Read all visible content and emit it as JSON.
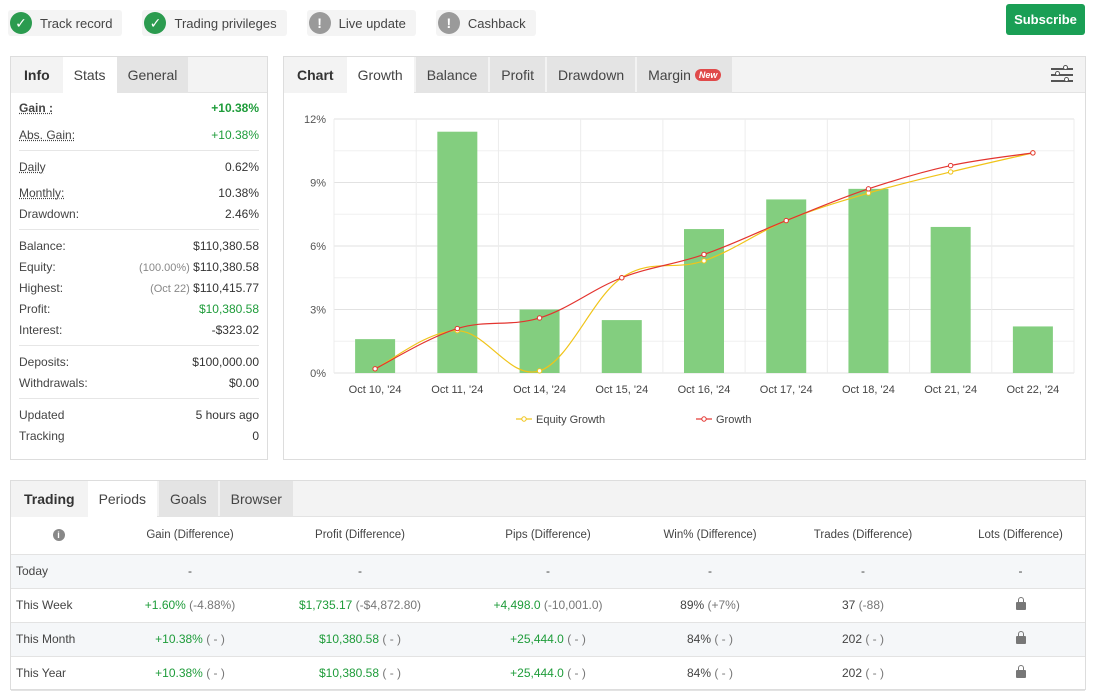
{
  "badges": [
    {
      "label": "Track record",
      "status": "ok"
    },
    {
      "label": "Trading privileges",
      "status": "ok"
    },
    {
      "label": "Live update",
      "status": "warn"
    },
    {
      "label": "Cashback",
      "status": "warn"
    }
  ],
  "subscribe_label": "Subscribe",
  "info_panel": {
    "tabs": [
      "Info",
      "Stats",
      "General"
    ],
    "gain": {
      "label": "Gain :",
      "value": "+10.38%"
    },
    "abs_gain": {
      "label": "Abs. Gain:",
      "value": "+10.38%"
    },
    "daily": {
      "label": "Daily",
      "value": "0.62%"
    },
    "monthly": {
      "label": "Monthly:",
      "value": "10.38%"
    },
    "drawdown": {
      "label": "Drawdown:",
      "value": "2.46%"
    },
    "balance": {
      "label": "Balance:",
      "value": "$110,380.58"
    },
    "equity": {
      "label": "Equity:",
      "prefix": "(100.00%)",
      "value": "$110,380.58"
    },
    "highest": {
      "label": "Highest:",
      "prefix": "(Oct 22)",
      "value": "$110,415.77"
    },
    "profit": {
      "label": "Profit:",
      "value": "$10,380.58"
    },
    "interest": {
      "label": "Interest:",
      "value": "-$323.02"
    },
    "deposits": {
      "label": "Deposits:",
      "value": "$100,000.00"
    },
    "withdrawals": {
      "label": "Withdrawals:",
      "value": "$0.00"
    },
    "updated": {
      "label": "Updated",
      "value": "5 hours ago"
    },
    "tracking": {
      "label": "Tracking",
      "value": "0"
    }
  },
  "chart_panel": {
    "tabs": [
      "Chart",
      "Growth",
      "Balance",
      "Profit",
      "Drawdown",
      "Margin"
    ],
    "new_badge": "New"
  },
  "chart_data": {
    "type": "bar",
    "categories": [
      "Oct 10, '24",
      "Oct 11, '24",
      "Oct 14, '24",
      "Oct 15, '24",
      "Oct 16, '24",
      "Oct 17, '24",
      "Oct 18, '24",
      "Oct 21, '24",
      "Oct 22, '24"
    ],
    "bars": [
      1.6,
      11.4,
      3.0,
      2.5,
      6.8,
      8.2,
      8.7,
      6.9,
      2.2
    ],
    "series": [
      {
        "name": "Equity Growth",
        "color": "#f0c419",
        "values": [
          0.2,
          2.0,
          0.1,
          4.5,
          5.3,
          7.2,
          8.5,
          9.5,
          10.4
        ]
      },
      {
        "name": "Growth",
        "color": "#e3342f",
        "values": [
          0.2,
          2.1,
          2.6,
          4.5,
          5.6,
          7.2,
          8.7,
          9.8,
          10.4
        ]
      }
    ],
    "bar_color": "#83ce7f",
    "yticks": [
      "0%",
      "3%",
      "6%",
      "9%",
      "12%"
    ],
    "ylim": [
      0,
      12
    ],
    "grid": true,
    "legend": "bottom"
  },
  "bottom": {
    "tabs": [
      "Trading",
      "Periods",
      "Goals",
      "Browser"
    ],
    "headers": [
      "Gain (Difference)",
      "Profit (Difference)",
      "Pips (Difference)",
      "Win% (Difference)",
      "Trades (Difference)",
      "Lots (Difference)"
    ],
    "rows": [
      {
        "period": "Today",
        "gain": "-",
        "gain_d": "",
        "profit": "-",
        "profit_d": "",
        "pips": "-",
        "pips_d": "",
        "win": "-",
        "win_d": "",
        "trades": "-",
        "trades_d": "",
        "lots": "-"
      },
      {
        "period": "This Week",
        "gain": "+1.60%",
        "gain_d": "(-4.88%)",
        "profit": "$1,735.17",
        "profit_d": "(-$4,872.80)",
        "pips": "+4,498.0",
        "pips_d": "(-10,001.0)",
        "win": "89%",
        "win_d": "(+7%)",
        "trades": "37",
        "trades_d": "(-88)",
        "lots": "lock"
      },
      {
        "period": "This Month",
        "gain": "+10.38%",
        "gain_d": "( - )",
        "profit": "$10,380.58",
        "profit_d": "( - )",
        "pips": "+25,444.0",
        "pips_d": "( - )",
        "win": "84%",
        "win_d": "( - )",
        "trades": "202",
        "trades_d": "( - )",
        "lots": "lock"
      },
      {
        "period": "This Year",
        "gain": "+10.38%",
        "gain_d": "( - )",
        "profit": "$10,380.58",
        "profit_d": "( - )",
        "pips": "+25,444.0",
        "pips_d": "( - )",
        "win": "84%",
        "win_d": "( - )",
        "trades": "202",
        "trades_d": "( - )",
        "lots": "lock"
      }
    ]
  }
}
